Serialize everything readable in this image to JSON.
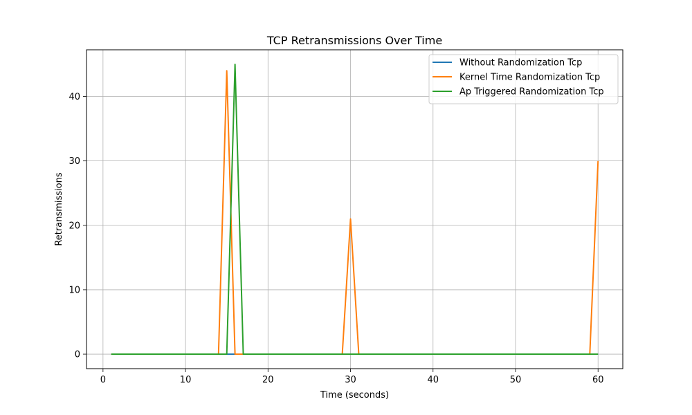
{
  "chart_data": {
    "type": "line",
    "title": "TCP Retransmissions Over Time",
    "xlabel": "Time (seconds)",
    "ylabel": "Retransmissions",
    "xlim": [
      -2,
      63
    ],
    "ylim": [
      -2.25,
      47.25
    ],
    "xticks": [
      0,
      10,
      20,
      30,
      40,
      50,
      60
    ],
    "yticks": [
      0,
      10,
      20,
      30,
      40
    ],
    "grid": true,
    "legend_position": "top-right",
    "series": [
      {
        "name": "Without Randomization Tcp",
        "color": "#1f77b4",
        "x": [
          1,
          15,
          16,
          60
        ],
        "y": [
          0,
          0,
          0,
          0
        ]
      },
      {
        "name": "Kernel Time Randomization Tcp",
        "color": "#ff7f0e",
        "x": [
          1,
          14,
          15,
          16,
          29,
          30,
          31,
          59,
          60
        ],
        "y": [
          0,
          0,
          44,
          0,
          0,
          21,
          0,
          0,
          30
        ]
      },
      {
        "name": "Ap Triggered Randomization Tcp",
        "color": "#2ca02c",
        "x": [
          1,
          15,
          16,
          17,
          60
        ],
        "y": [
          0,
          0,
          45,
          0,
          0
        ]
      }
    ]
  }
}
